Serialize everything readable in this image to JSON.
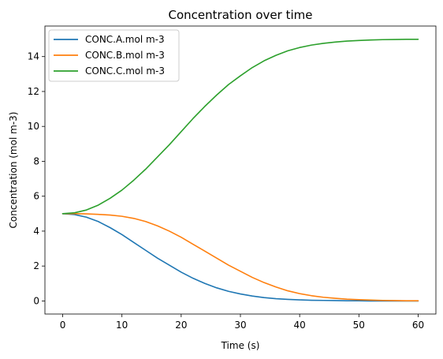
{
  "chart_data": {
    "type": "line",
    "title": "Concentration over time",
    "xlabel": "Time (s)",
    "ylabel": "Concentration (mol m-3)",
    "xlim": [
      -3,
      63
    ],
    "ylim": [
      -0.75,
      15.75
    ],
    "xticks": [
      0,
      10,
      20,
      30,
      40,
      50,
      60
    ],
    "yticks": [
      0,
      2,
      4,
      6,
      8,
      10,
      12,
      14
    ],
    "grid": false,
    "legend_position": "upper left",
    "series": [
      {
        "name": "CONC.A.mol m-3",
        "color": "#1f77b4",
        "x": [
          0,
          2,
          4,
          6,
          8,
          10,
          12,
          14,
          16,
          18,
          20,
          22,
          24,
          26,
          28,
          30,
          32,
          34,
          36,
          38,
          40,
          42,
          44,
          46,
          48,
          50,
          52,
          54,
          56,
          58,
          60
        ],
        "y": [
          5.0,
          4.95,
          4.8,
          4.55,
          4.2,
          3.8,
          3.35,
          2.9,
          2.45,
          2.05,
          1.65,
          1.3,
          1.0,
          0.75,
          0.55,
          0.4,
          0.28,
          0.19,
          0.13,
          0.09,
          0.06,
          0.04,
          0.03,
          0.02,
          0.01,
          0.01,
          0.0,
          0.0,
          0.0,
          0.0,
          0.0
        ]
      },
      {
        "name": "CONC.B.mol m-3",
        "color": "#ff7f0e",
        "x": [
          0,
          2,
          4,
          6,
          8,
          10,
          12,
          14,
          16,
          18,
          20,
          22,
          24,
          26,
          28,
          30,
          32,
          34,
          36,
          38,
          40,
          42,
          44,
          46,
          48,
          50,
          52,
          54,
          56,
          58,
          60
        ],
        "y": [
          5.0,
          5.0,
          4.99,
          4.96,
          4.92,
          4.85,
          4.73,
          4.55,
          4.3,
          4.0,
          3.65,
          3.25,
          2.85,
          2.45,
          2.05,
          1.7,
          1.35,
          1.05,
          0.8,
          0.58,
          0.42,
          0.3,
          0.21,
          0.15,
          0.1,
          0.07,
          0.05,
          0.03,
          0.02,
          0.01,
          0.01
        ]
      },
      {
        "name": "CONC.C.mol m-3",
        "color": "#2ca02c",
        "x": [
          0,
          2,
          4,
          6,
          8,
          10,
          12,
          14,
          16,
          18,
          20,
          22,
          24,
          26,
          28,
          30,
          32,
          34,
          36,
          38,
          40,
          42,
          44,
          46,
          48,
          50,
          52,
          54,
          56,
          58,
          60
        ],
        "y": [
          5.0,
          5.05,
          5.21,
          5.49,
          5.88,
          6.35,
          6.92,
          7.55,
          8.25,
          8.95,
          9.7,
          10.45,
          11.15,
          11.8,
          12.4,
          12.9,
          13.37,
          13.76,
          14.07,
          14.33,
          14.52,
          14.66,
          14.76,
          14.83,
          14.89,
          14.92,
          14.95,
          14.97,
          14.98,
          14.99,
          14.99
        ]
      }
    ]
  }
}
